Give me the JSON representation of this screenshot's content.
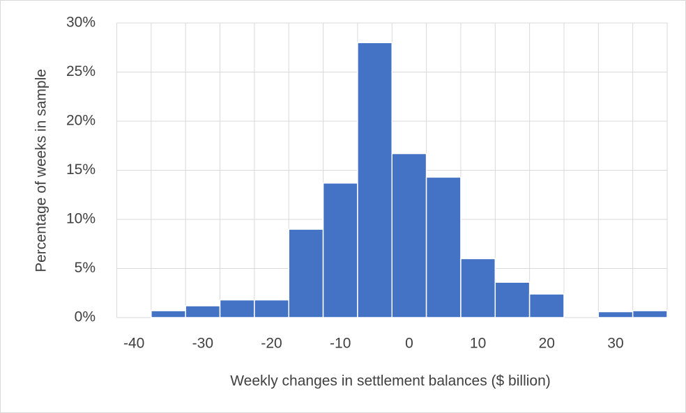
{
  "chart_data": {
    "type": "histogram",
    "xlabel": "Weekly changes in settlement balances ($ billion)",
    "ylabel": "Percentage of weeks in sample",
    "bins": [
      -42.5,
      -37.5,
      -32.5,
      -27.5,
      -22.5,
      -17.5,
      -12.5,
      -7.5,
      -2.5,
      2.5,
      7.5,
      12.5,
      17.5,
      22.5,
      27.5,
      32.5,
      37.5
    ],
    "values": [
      0,
      0.7,
      1.2,
      1.8,
      1.8,
      9.0,
      13.7,
      28.0,
      16.7,
      14.3,
      6.0,
      3.6,
      2.4,
      0,
      0.6,
      0.7
    ],
    "color": "#4472c4",
    "xlim": [
      -42.5,
      37.5
    ],
    "xticks": [
      -40,
      -30,
      -20,
      -10,
      0,
      10,
      20,
      30
    ],
    "ylim": [
      0,
      30
    ],
    "yticks": [
      {
        "value": 0,
        "label": "0%"
      },
      {
        "value": 5,
        "label": "5%"
      },
      {
        "value": 10,
        "label": "10%"
      },
      {
        "value": 15,
        "label": "15%"
      },
      {
        "value": 20,
        "label": "20%"
      },
      {
        "value": 25,
        "label": "25%"
      },
      {
        "value": 30,
        "label": "30%"
      }
    ],
    "grid": true
  }
}
